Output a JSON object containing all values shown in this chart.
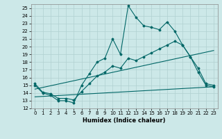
{
  "xlabel": "Humidex (Indice chaleur)",
  "ylabel": "",
  "xlim": [
    -0.5,
    23.5
  ],
  "ylim": [
    12,
    25.5
  ],
  "yticks": [
    12,
    13,
    14,
    15,
    16,
    17,
    18,
    19,
    20,
    21,
    22,
    23,
    24,
    25
  ],
  "xticks": [
    0,
    1,
    2,
    3,
    4,
    5,
    6,
    7,
    8,
    9,
    10,
    11,
    12,
    13,
    14,
    15,
    16,
    17,
    18,
    19,
    20,
    21,
    22,
    23
  ],
  "bg_color": "#cce8e8",
  "line_color": "#006666",
  "grid_color": "#b0d0d0",
  "line1_x": [
    0,
    1,
    2,
    3,
    4,
    5,
    6,
    7,
    8,
    9,
    10,
    11,
    12,
    13,
    14,
    15,
    16,
    17,
    18,
    19,
    20,
    21,
    22,
    23
  ],
  "line1_y": [
    15.0,
    14.0,
    13.7,
    13.0,
    13.0,
    12.7,
    15.0,
    16.5,
    18.0,
    18.5,
    21.0,
    19.0,
    25.3,
    23.8,
    22.7,
    22.5,
    22.2,
    23.2,
    22.0,
    20.2,
    18.7,
    16.7,
    15.0,
    14.8
  ],
  "line2_x": [
    0,
    1,
    2,
    3,
    4,
    5,
    6,
    7,
    8,
    9,
    10,
    11,
    12,
    13,
    14,
    15,
    16,
    17,
    18,
    19,
    20,
    21,
    22,
    23
  ],
  "line2_y": [
    15.2,
    14.1,
    13.9,
    13.3,
    13.3,
    13.1,
    14.2,
    15.2,
    16.2,
    16.7,
    17.5,
    17.2,
    18.5,
    18.2,
    18.7,
    19.2,
    19.7,
    20.2,
    20.7,
    20.2,
    18.7,
    17.2,
    15.2,
    15.0
  ],
  "line3_x": [
    0,
    23
  ],
  "line3_y": [
    14.5,
    19.5
  ],
  "line4_x": [
    0,
    23
  ],
  "line4_y": [
    13.5,
    14.8
  ]
}
